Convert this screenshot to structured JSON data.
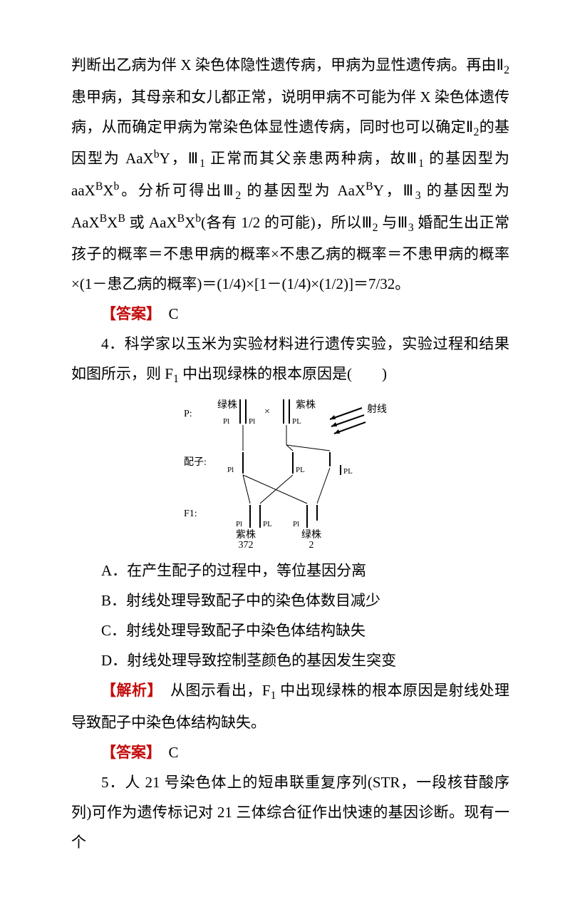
{
  "para1_html": "判断出乙病为伴 X 染色体隐性遗传病，甲病为显性遗传病。再由Ⅱ<span class='sub'>2</span> 患甲病，其母亲和女儿都正常，说明甲病不可能为伴 X 染色体遗传病，从而确定甲病为常染色体显性遗传病，同时也可以确定Ⅱ<span class='sub'>2</span>的基因型为 AaX<span class='sup'>b</span>Y，Ⅲ<span class='sub'>1</span> 正常而其父亲患两种病，故Ⅲ<span class='sub'>1</span> 的基因型为aaX<span class='sup'>B</span>X<span class='sup'>b</span>。分析可得出Ⅲ<span class='sub'>2</span> 的基因型为 AaX<span class='sup'>B</span>Y，Ⅲ<span class='sub'>3</span> 的基因型为AaX<span class='sup'>B</span>X<span class='sup'>B</span> 或 AaX<span class='sup'>B</span>X<span class='sup'>b</span>(各有 1/2 的可能)，所以Ⅲ<span class='sub'>2</span> 与Ⅲ<span class='sub'>3</span> 婚配生出正常孩子的概率＝不患甲病的概率×不患乙病的概率＝不患甲病的概率×(1－患乙病的概率)＝(1/4)×[1－(1/4)×(1/2)]＝7/32。",
  "answer3_label": "【答案】",
  "answer3_value": "　C",
  "q4_stem_html": "4．科学家以玉米为实验材料进行遗传实验，实验过程和结果如图所示，则 F<span class='sub'>1</span> 中出现绿株的根本原因是(　　)",
  "q4_optA": "A．在产生配子的过程中，等位基因分离",
  "q4_optB": "B．射线处理导致配子中的染色体数目减少",
  "q4_optC": "C．射线处理导致配子中染色体结构缺失",
  "q4_optD": "D．射线处理导致控制茎颜色的基因发生突变",
  "analysis4_label": "【解析】",
  "analysis4_text_html": "　从图示看出，F<span class='sub'>1</span> 中出现绿株的根本原因是射线处理导致配子中染色体结构缺失。",
  "answer4_label": "【答案】",
  "answer4_value": "　C",
  "q5_stem": "5．人 21 号染色体上的短串联重复序列(STR，一段核苷酸序列)可作为遗传标记对 21 三体综合征作出快速的基因诊断。现有一个",
  "diagram": {
    "row_labels": {
      "P": "P:",
      "gamete": "配子:",
      "F1": "F1:"
    },
    "parent_left": {
      "caption": "绿株",
      "allele": "Pl"
    },
    "parent_right": {
      "caption": "紫株",
      "allele": "PL"
    },
    "ray_label": "射线",
    "gamete_left": "Pl",
    "gamete_mid": "PL",
    "gamete_right": "PL",
    "f1_left": {
      "caption": "紫株",
      "count": "372",
      "alleleL": "Pl",
      "alleleR": "PL"
    },
    "f1_right": {
      "caption": "绿株",
      "count": "2",
      "alleleL": "Pl"
    },
    "colors": {
      "ink": "#000000"
    }
  }
}
